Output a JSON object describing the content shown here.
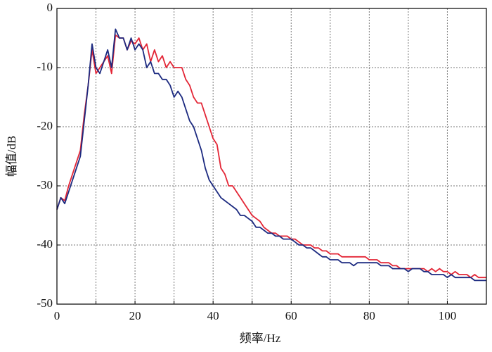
{
  "chart_data": {
    "type": "line",
    "xlabel": "频率/Hz",
    "ylabel": "幅值/dB",
    "x": [
      0,
      1,
      2,
      3,
      4,
      5,
      6,
      7,
      8,
      9,
      10,
      11,
      12,
      13,
      14,
      15,
      16,
      17,
      18,
      19,
      20,
      21,
      22,
      23,
      24,
      25,
      26,
      27,
      28,
      29,
      30,
      31,
      32,
      33,
      34,
      35,
      36,
      37,
      38,
      39,
      40,
      41,
      42,
      43,
      44,
      45,
      46,
      47,
      48,
      49,
      50,
      51,
      52,
      53,
      54,
      55,
      56,
      57,
      58,
      59,
      60,
      61,
      62,
      63,
      64,
      65,
      66,
      67,
      68,
      69,
      70,
      71,
      72,
      73,
      74,
      75,
      76,
      77,
      78,
      79,
      80,
      81,
      82,
      83,
      84,
      85,
      86,
      87,
      88,
      89,
      90,
      91,
      92,
      93,
      94,
      95,
      96,
      97,
      98,
      99,
      100,
      101,
      102,
      103,
      104,
      105,
      106,
      107,
      108,
      109,
      110
    ],
    "series": [
      {
        "name": "red",
        "color": "#e32636",
        "values": [
          -34,
          -32,
          -32.5,
          -30,
          -28,
          -26,
          -24,
          -18,
          -13,
          -7,
          -11,
          -10,
          -9,
          -8,
          -11,
          -4.5,
          -5,
          -5,
          -7,
          -5.5,
          -6,
          -5,
          -7,
          -6,
          -9,
          -7,
          -9,
          -8,
          -10,
          -9,
          -10,
          -10,
          -10,
          -12,
          -13,
          -15,
          -16,
          -16,
          -18,
          -20,
          -22,
          -23,
          -27,
          -28,
          -30,
          -30,
          -31,
          -32,
          -33,
          -34,
          -35,
          -35.5,
          -36,
          -37,
          -37.5,
          -38,
          -38,
          -38.5,
          -38.5,
          -38.5,
          -39,
          -39,
          -39.5,
          -40,
          -40,
          -40,
          -40.5,
          -40.5,
          -41,
          -41,
          -41.5,
          -41.5,
          -41.5,
          -42,
          -42,
          -42,
          -42,
          -42,
          -42,
          -42,
          -42.5,
          -42.5,
          -42.5,
          -43,
          -43,
          -43,
          -43.5,
          -43.5,
          -44,
          -44,
          -44,
          -44,
          -44,
          -44,
          -44,
          -44.5,
          -44,
          -44.5,
          -44,
          -44.5,
          -44.5,
          -45,
          -44.5,
          -45,
          -45,
          -45,
          -45.5,
          -45,
          -45.5,
          -45.5,
          -45.5
        ]
      },
      {
        "name": "blue",
        "color": "#1c2a80",
        "values": [
          -34,
          -32,
          -33,
          -31,
          -29,
          -27,
          -25,
          -19,
          -13,
          -6,
          -10,
          -11,
          -9,
          -7,
          -10,
          -3.5,
          -5,
          -5,
          -7,
          -5,
          -7,
          -6,
          -7,
          -10,
          -9,
          -11,
          -11,
          -12,
          -12,
          -13,
          -15,
          -14,
          -15,
          -17,
          -19,
          -20,
          -22,
          -24,
          -27,
          -29,
          -30,
          -31,
          -32,
          -32.5,
          -33,
          -33.5,
          -34,
          -35,
          -35,
          -35.5,
          -36,
          -37,
          -37,
          -37.5,
          -38,
          -38,
          -38.5,
          -38.5,
          -39,
          -39,
          -39,
          -39.5,
          -40,
          -40,
          -40.5,
          -40.5,
          -41,
          -41.5,
          -42,
          -42,
          -42.5,
          -42.5,
          -42.5,
          -43,
          -43,
          -43,
          -43.5,
          -43,
          -43,
          -43,
          -43,
          -43,
          -43,
          -43.5,
          -43.5,
          -43.5,
          -44,
          -44,
          -44,
          -44,
          -44.5,
          -44,
          -44,
          -44,
          -44.5,
          -44.5,
          -45,
          -45,
          -45,
          -45,
          -45.5,
          -45,
          -45.5,
          -45.5,
          -45.5,
          -45.5,
          -45.5,
          -46,
          -46,
          -46,
          -46
        ]
      }
    ],
    "xlim": [
      0,
      110
    ],
    "ylim": [
      -50,
      0
    ],
    "xticks": [
      0,
      20,
      40,
      60,
      80,
      100
    ],
    "xminor_ticks": [
      10,
      30,
      50,
      70,
      90
    ],
    "yticks": [
      0,
      -10,
      -20,
      -30,
      -40,
      -50
    ],
    "grid": true
  }
}
